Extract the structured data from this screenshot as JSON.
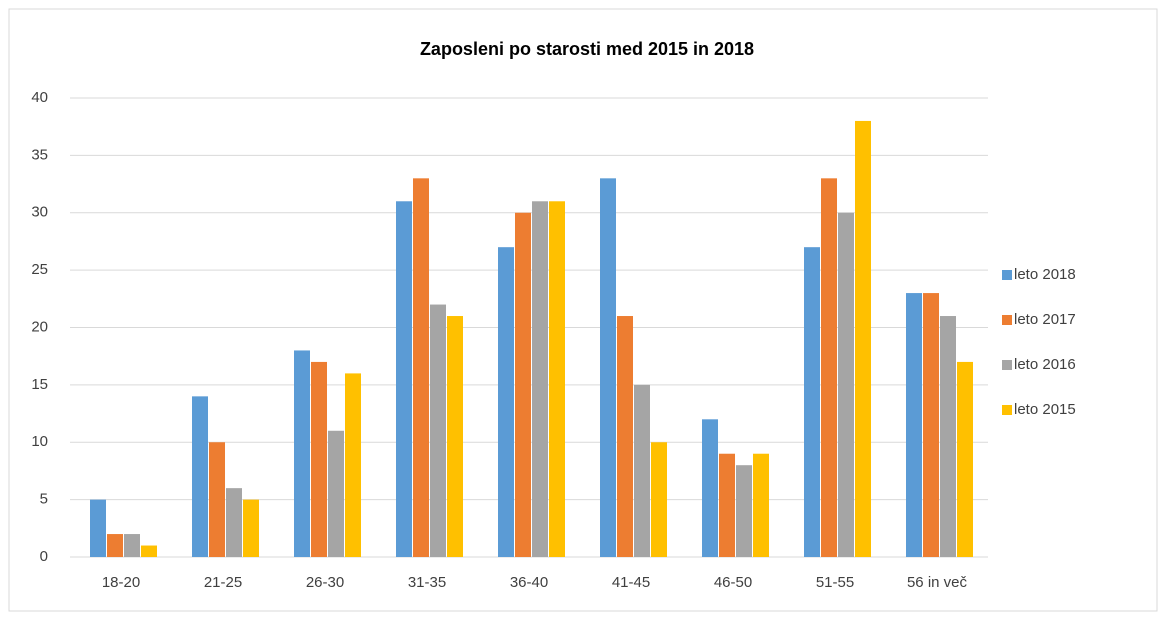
{
  "chart_data": {
    "type": "bar",
    "title": "Zaposleni po starosti med 2015 in 2018",
    "categories": [
      "18-20",
      "21-25",
      "26-30",
      "31-35",
      "36-40",
      "41-45",
      "46-50",
      "51-55",
      "56 in več"
    ],
    "series": [
      {
        "name": "leto 2018",
        "color": "#5b9bd5",
        "values": [
          5,
          14,
          18,
          31,
          27,
          33,
          12,
          27,
          23
        ]
      },
      {
        "name": "leto 2017",
        "color": "#ed7d31",
        "values": [
          2,
          10,
          17,
          33,
          30,
          21,
          9,
          33,
          23
        ]
      },
      {
        "name": "leto 2016",
        "color": "#a5a5a5",
        "values": [
          2,
          6,
          11,
          22,
          31,
          15,
          8,
          30,
          21
        ]
      },
      {
        "name": "leto 2015",
        "color": "#ffc000",
        "values": [
          1,
          5,
          16,
          21,
          31,
          10,
          9,
          38,
          17
        ]
      }
    ],
    "ylim": [
      0,
      40
    ],
    "yticks": [
      0,
      5,
      10,
      15,
      20,
      25,
      30,
      35,
      40
    ],
    "grid": true,
    "legend": "right"
  }
}
